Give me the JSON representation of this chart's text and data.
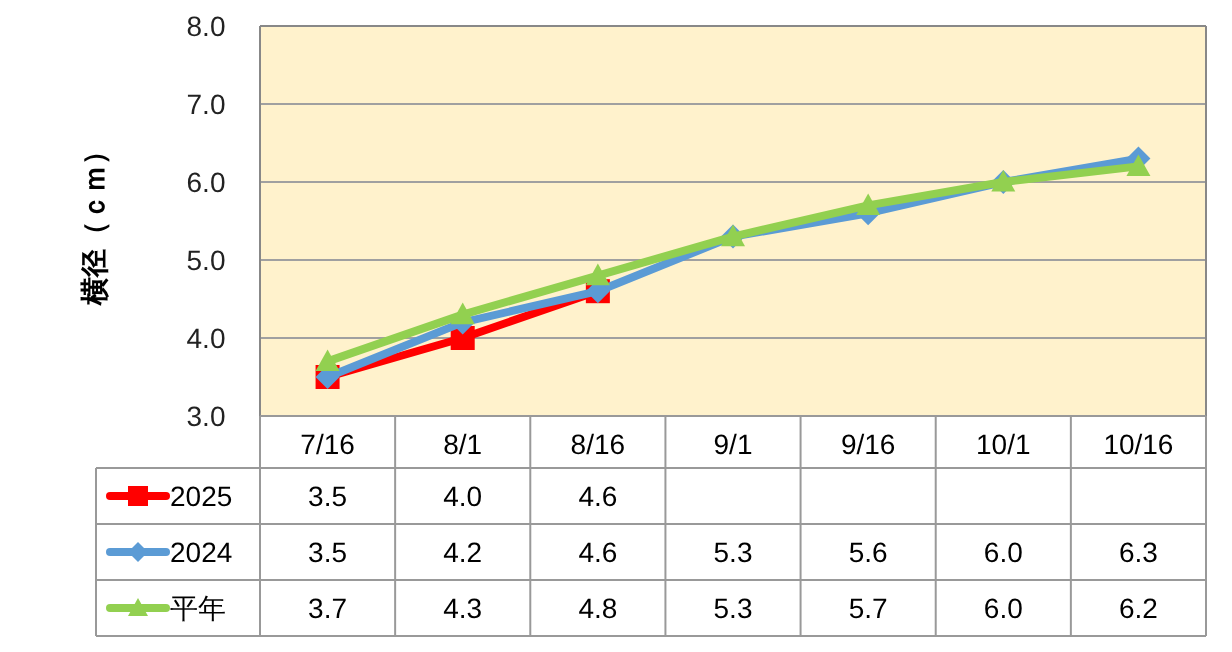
{
  "chart_data": {
    "type": "line",
    "ylabel": "横径（ｃｍ）",
    "categories": [
      "7/16",
      "8/1",
      "8/16",
      "9/1",
      "9/16",
      "10/1",
      "10/16"
    ],
    "ylim": [
      3,
      8
    ],
    "yticks": [
      {
        "value": 3,
        "label": "3.0"
      },
      {
        "value": 4,
        "label": "4.0"
      },
      {
        "value": 5,
        "label": "5.0"
      },
      {
        "value": 6,
        "label": "6.0"
      },
      {
        "value": 7,
        "label": "7.0"
      },
      {
        "value": 8,
        "label": "8.0"
      }
    ],
    "grid": "y",
    "legend": "bottom left",
    "series": [
      {
        "name": "2025",
        "color": "#ff0000",
        "marker": "square",
        "values": [
          3.5,
          4.0,
          4.6,
          null,
          null,
          null,
          null
        ],
        "value_labels": [
          "3.5",
          "4.0",
          "4.6",
          null,
          null,
          null,
          null
        ]
      },
      {
        "name": "2024",
        "color": "#5b9bd5",
        "marker": "diamond",
        "values": [
          3.5,
          4.2,
          4.6,
          5.3,
          5.6,
          6.0,
          6.3
        ],
        "value_labels": [
          "3.5",
          "4.2",
          "4.6",
          "5.3",
          "5.6",
          "6.0",
          "6.3"
        ]
      },
      {
        "name": "平年",
        "color": "#92d050",
        "marker": "triangle",
        "values": [
          3.7,
          4.3,
          4.8,
          5.3,
          5.7,
          6.0,
          6.2
        ],
        "value_labels": [
          "3.7",
          "4.3",
          "4.8",
          "5.3",
          "5.7",
          "6.0",
          "6.2"
        ]
      }
    ]
  }
}
